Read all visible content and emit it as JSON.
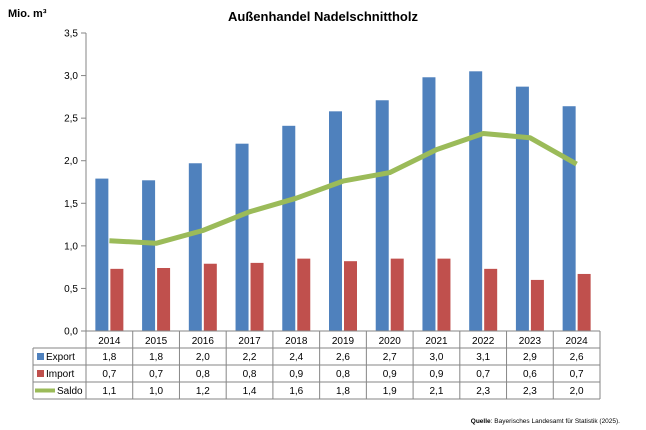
{
  "chart_data": {
    "type": "bar",
    "title": "Außenhandel Nadelschnittholz",
    "ylabel": "Mio. m³",
    "ylim": [
      0,
      3.5
    ],
    "yticks": [
      "0,0",
      "0,5",
      "1,0",
      "1,5",
      "2,0",
      "2,5",
      "3,0",
      "3,5"
    ],
    "grid": false,
    "legend": "data-table",
    "categories": [
      "2014",
      "2015",
      "2016",
      "2017",
      "2018",
      "2019",
      "2020",
      "2021",
      "2022",
      "2023",
      "2024"
    ],
    "series": [
      {
        "name": "Export",
        "type": "bar",
        "color": "#4f81bd",
        "values": [
          1.79,
          1.77,
          1.97,
          2.2,
          2.41,
          2.58,
          2.71,
          2.98,
          3.05,
          2.87,
          2.64
        ],
        "labels": [
          "1,8",
          "1,8",
          "2,0",
          "2,2",
          "2,4",
          "2,6",
          "2,7",
          "3,0",
          "3,1",
          "2,9",
          "2,6"
        ]
      },
      {
        "name": "Import",
        "type": "bar",
        "color": "#c0504d",
        "values": [
          0.73,
          0.74,
          0.79,
          0.8,
          0.85,
          0.82,
          0.85,
          0.85,
          0.73,
          0.6,
          0.67
        ],
        "labels": [
          "0,7",
          "0,7",
          "0,8",
          "0,8",
          "0,9",
          "0,8",
          "0,9",
          "0,9",
          "0,7",
          "0,6",
          "0,7"
        ]
      },
      {
        "name": "Saldo",
        "type": "line",
        "color": "#9bbb59",
        "values": [
          1.06,
          1.03,
          1.18,
          1.4,
          1.56,
          1.76,
          1.86,
          2.13,
          2.32,
          2.27,
          1.96
        ],
        "labels": [
          "1,1",
          "1,0",
          "1,2",
          "1,4",
          "1,6",
          "1,8",
          "1,9",
          "2,1",
          "2,3",
          "2,3",
          "2,0"
        ]
      }
    ]
  },
  "source": {
    "label": "Quelle",
    "text": ": Bayerisches Landesamt für Statistik (2025)."
  }
}
